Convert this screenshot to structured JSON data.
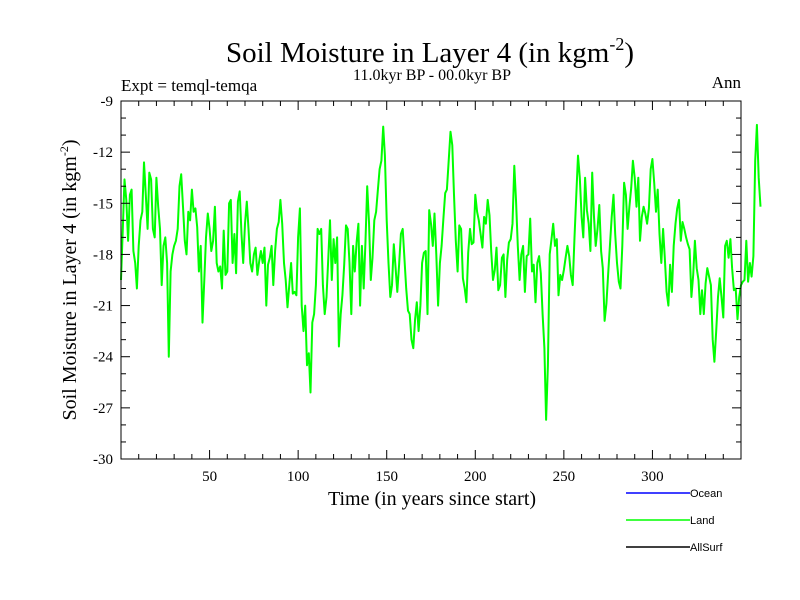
{
  "chart_data": {
    "type": "line",
    "title": "Soil Moisture in Layer 4 (in kgm",
    "title_sup": "-2",
    "title_close": ")",
    "subtitle": "11.0kyr BP - 00.0kyr BP",
    "left_note": "Expt = temql-temqa",
    "right_note": "Ann",
    "xlabel": "Time (in years since start)",
    "ylabel": "Soil Moisture in Layer 4 (in kgm",
    "ylabel_sup": "-2",
    "ylabel_close": ")",
    "xlim": [
      0,
      350
    ],
    "ylim": [
      -30,
      -9
    ],
    "xticks": [
      50,
      100,
      150,
      200,
      250,
      300
    ],
    "yticks": [
      -30,
      -27,
      -24,
      -21,
      -18,
      -15,
      -12,
      -9
    ],
    "xtick_labels": [
      "50",
      "100",
      "150",
      "200",
      "250",
      "300"
    ],
    "ytick_labels": [
      "-30",
      "-27",
      "-24",
      "-21",
      "-18",
      "-15",
      "-12",
      "-9"
    ],
    "legend": [
      {
        "name": "Ocean",
        "color": "#0000ff"
      },
      {
        "name": "Land",
        "color": "#00ff00"
      },
      {
        "name": "AllSurf",
        "color": "#000000"
      }
    ],
    "series": [
      {
        "name": "Land",
        "color": "#00ff00",
        "x_start": 0,
        "x_step": 1,
        "values": [
          -19.5,
          -16.5,
          -13.6,
          -14.8,
          -17.2,
          -14.5,
          -14.2,
          -17.8,
          -18.5,
          -20,
          -17.5,
          -16,
          -15.5,
          -12.6,
          -14.5,
          -16.5,
          -13.2,
          -13.6,
          -16.5,
          -17,
          -13.5,
          -15.2,
          -16.5,
          -19.8,
          -17.5,
          -17,
          -18.5,
          -24,
          -19,
          -18,
          -17.5,
          -17.2,
          -16.5,
          -14,
          -13.3,
          -15.2,
          -17.2,
          -18,
          -15.5,
          -16,
          -14.2,
          -15.5,
          -15.3,
          -16.4,
          -19,
          -17.5,
          -22,
          -19.5,
          -17,
          -15.6,
          -16.5,
          -17.8,
          -17.2,
          -15.2,
          -18.5,
          -19,
          -18.7,
          -20,
          -16.6,
          -19.2,
          -19,
          -15,
          -14.8,
          -18.5,
          -16.8,
          -19.1,
          -14.9,
          -14.3,
          -16.8,
          -18.5,
          -16.2,
          -14.9,
          -16.5,
          -18.5,
          -19,
          -18,
          -17.6,
          -19.2,
          -18.4,
          -17.8,
          -18.5,
          -17.6,
          -21,
          -18.6,
          -18.2,
          -17.5,
          -19.8,
          -17.8,
          -16.5,
          -16.1,
          -14.8,
          -16.2,
          -18.5,
          -19.5,
          -21.1,
          -19.8,
          -18.5,
          -20.3,
          -20.2,
          -20.4,
          -17,
          -15.3,
          -21,
          -22.5,
          -21,
          -24.5,
          -23.8,
          -26.1,
          -22,
          -21.5,
          -19.8,
          -16.5,
          -16.8,
          -16.5,
          -19.8,
          -21.5,
          -20.5,
          -18.2,
          -16,
          -19.5,
          -17.1,
          -18.5,
          -17,
          -23.4,
          -21.5,
          -20.4,
          -18.6,
          -16.3,
          -16.5,
          -18.5,
          -21.5,
          -17.5,
          -19,
          -17.3,
          -16.2,
          -21,
          -17.5,
          -20,
          -17.2,
          -14,
          -16.1,
          -19.5,
          -18.2,
          -16,
          -15.5,
          -14.2,
          -13,
          -12.5,
          -10.5,
          -12.2,
          -16,
          -18.5,
          -20.5,
          -19.8,
          -17.4,
          -18.8,
          -20.2,
          -18.6,
          -16.8,
          -16.5,
          -18.2,
          -20,
          -21.3,
          -21.5,
          -23,
          -23.5,
          -21.8,
          -20.8,
          -22.5,
          -21,
          -18.5,
          -17.9,
          -17.8,
          -21.5,
          -15.4,
          -16.2,
          -17.5,
          -15.6,
          -18,
          -21,
          -18.5,
          -17.5,
          -15.9,
          -14.4,
          -14.2,
          -12.5,
          -10.8,
          -11.6,
          -14.5,
          -17.2,
          -19,
          -16.3,
          -16.5,
          -19.4,
          -20,
          -20.8,
          -17.9,
          -16.5,
          -17.4,
          -17.3,
          -14.5,
          -15.5,
          -16,
          -16.8,
          -17.6,
          -15.8,
          -16.2,
          -14.8,
          -15.7,
          -17.8,
          -19.5,
          -18.9,
          -17.6,
          -20.1,
          -19.8,
          -18.2,
          -18,
          -20.5,
          -18.3,
          -17.3,
          -17.1,
          -16.2,
          -12.8,
          -14.8,
          -17.5,
          -19.5,
          -18,
          -17.5,
          -20.2,
          -18.1,
          -18,
          -15.9,
          -19,
          -18.6,
          -20.8,
          -18.5,
          -18.1,
          -19.1,
          -21.5,
          -23.5,
          -27.7,
          -24.5,
          -18,
          -17.1,
          -16.2,
          -17.5,
          -17.1,
          -20.4,
          -19.2,
          -19.5,
          -18.9,
          -18.2,
          -17.5,
          -18.1,
          -19.2,
          -19.8,
          -17,
          -14.5,
          -12.2,
          -13.5,
          -15.8,
          -17,
          -13.5,
          -15.4,
          -16.2,
          -17.8,
          -13.2,
          -15.8,
          -17.5,
          -16.5,
          -15.1,
          -17.8,
          -18.8,
          -21.9,
          -20.9,
          -19.2,
          -17.5,
          -15.8,
          -14.5,
          -16.8,
          -18.5,
          -19.6,
          -20,
          -17.5,
          -13.8,
          -14.5,
          -16.5,
          -15.2,
          -14.1,
          -12.5,
          -13.5,
          -15.2,
          -13.5,
          -17.2,
          -15.8,
          -15.2,
          -15.6,
          -16.2,
          -15.3,
          -13,
          -12.4,
          -13.8,
          -15.5,
          -14.2,
          -16.8,
          -18.5,
          -16.5,
          -18.2,
          -20.2,
          -21,
          -18.6,
          -20.2,
          -17.5,
          -16.2,
          -15.3,
          -14.8,
          -17.2,
          -16.1,
          -16.5,
          -17,
          -17.4,
          -17.7,
          -20.5,
          -19.2,
          -17.2,
          -18.8,
          -19.5,
          -21.5,
          -20.1,
          -21.5,
          -19.7,
          -18.8,
          -19.3,
          -19.8,
          -23,
          -24.3,
          -22.5,
          -20.5,
          -19.4,
          -20.5,
          -21.7,
          -17.5,
          -17.2,
          -18.2,
          -17.1,
          -18.8,
          -20.1,
          -20,
          -21.8,
          -20.5,
          -19.8,
          -19.6,
          -19.5,
          -17.2,
          -19.6,
          -18.5,
          -19.3,
          -18.1,
          -12.5,
          -10.4,
          -13.5,
          -15.2
        ]
      }
    ]
  }
}
